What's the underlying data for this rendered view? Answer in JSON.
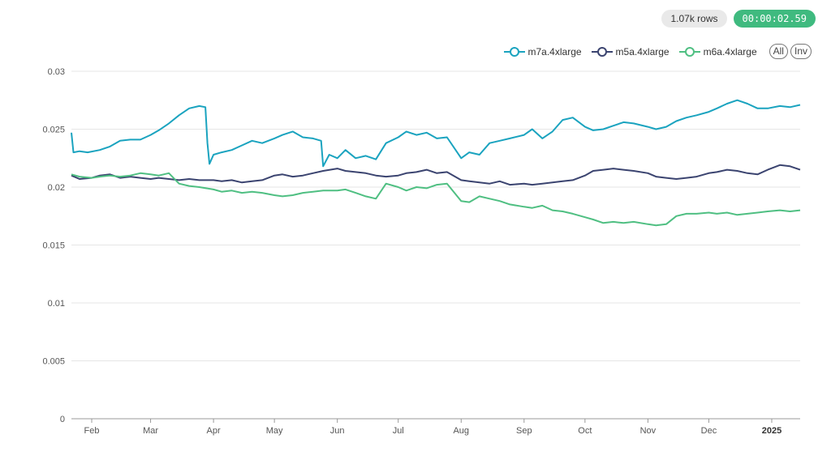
{
  "header": {
    "rows_badge": "1.07k rows",
    "timer": "00:00:02.59"
  },
  "legend": {
    "all_label": "All",
    "inv_label": "Inv"
  },
  "chart_data": {
    "type": "line",
    "title": "",
    "xlabel": "",
    "ylabel": "",
    "xlim": [
      "2024-01-22",
      "2025-01-15"
    ],
    "ylim": [
      0,
      0.03
    ],
    "y_ticks": [
      0,
      0.005,
      0.01,
      0.015,
      0.02,
      0.025,
      0.03
    ],
    "y_tick_labels": [
      "0",
      "0.005",
      "0.01",
      "0.015",
      "0.02",
      "0.025",
      "0.03"
    ],
    "x_ticks": [
      {
        "date": "2024-02-01",
        "label": "Feb",
        "bold": false
      },
      {
        "date": "2024-03-01",
        "label": "Mar",
        "bold": false
      },
      {
        "date": "2024-04-01",
        "label": "Apr",
        "bold": false
      },
      {
        "date": "2024-05-01",
        "label": "May",
        "bold": false
      },
      {
        "date": "2024-06-01",
        "label": "Jun",
        "bold": false
      },
      {
        "date": "2024-07-01",
        "label": "Jul",
        "bold": false
      },
      {
        "date": "2024-08-01",
        "label": "Aug",
        "bold": false
      },
      {
        "date": "2024-09-01",
        "label": "Sep",
        "bold": false
      },
      {
        "date": "2024-10-01",
        "label": "Oct",
        "bold": false
      },
      {
        "date": "2024-11-01",
        "label": "Nov",
        "bold": false
      },
      {
        "date": "2024-12-01",
        "label": "Dec",
        "bold": false
      },
      {
        "date": "2025-01-01",
        "label": "2025",
        "bold": true
      }
    ],
    "grid": true,
    "legend_position": "top-right",
    "series": [
      {
        "name": "m7a.4xlarge",
        "color": "#1aa3bf",
        "points": [
          [
            "2024-01-22",
            0.0247
          ],
          [
            "2024-01-23",
            0.023
          ],
          [
            "2024-01-26",
            0.0231
          ],
          [
            "2024-01-30",
            0.023
          ],
          [
            "2024-02-05",
            0.0232
          ],
          [
            "2024-02-10",
            0.0235
          ],
          [
            "2024-02-15",
            0.024
          ],
          [
            "2024-02-20",
            0.0241
          ],
          [
            "2024-02-25",
            0.0241
          ],
          [
            "2024-03-01",
            0.0245
          ],
          [
            "2024-03-05",
            0.0249
          ],
          [
            "2024-03-10",
            0.0255
          ],
          [
            "2024-03-15",
            0.0262
          ],
          [
            "2024-03-20",
            0.0268
          ],
          [
            "2024-03-25",
            0.027
          ],
          [
            "2024-03-28",
            0.0269
          ],
          [
            "2024-03-29",
            0.0238
          ],
          [
            "2024-03-30",
            0.022
          ],
          [
            "2024-04-01",
            0.0228
          ],
          [
            "2024-04-05",
            0.023
          ],
          [
            "2024-04-10",
            0.0232
          ],
          [
            "2024-04-15",
            0.0236
          ],
          [
            "2024-04-20",
            0.024
          ],
          [
            "2024-04-25",
            0.0238
          ],
          [
            "2024-05-01",
            0.0242
          ],
          [
            "2024-05-05",
            0.0245
          ],
          [
            "2024-05-10",
            0.0248
          ],
          [
            "2024-05-15",
            0.0243
          ],
          [
            "2024-05-20",
            0.0242
          ],
          [
            "2024-05-24",
            0.024
          ],
          [
            "2024-05-25",
            0.0218
          ],
          [
            "2024-05-28",
            0.0228
          ],
          [
            "2024-06-01",
            0.0225
          ],
          [
            "2024-06-05",
            0.0232
          ],
          [
            "2024-06-10",
            0.0225
          ],
          [
            "2024-06-15",
            0.0227
          ],
          [
            "2024-06-20",
            0.0224
          ],
          [
            "2024-06-25",
            0.0238
          ],
          [
            "2024-07-01",
            0.0243
          ],
          [
            "2024-07-05",
            0.0248
          ],
          [
            "2024-07-10",
            0.0245
          ],
          [
            "2024-07-15",
            0.0247
          ],
          [
            "2024-07-20",
            0.0242
          ],
          [
            "2024-07-25",
            0.0243
          ],
          [
            "2024-08-01",
            0.0225
          ],
          [
            "2024-08-05",
            0.023
          ],
          [
            "2024-08-10",
            0.0228
          ],
          [
            "2024-08-15",
            0.0238
          ],
          [
            "2024-08-20",
            0.024
          ],
          [
            "2024-08-25",
            0.0242
          ],
          [
            "2024-09-01",
            0.0245
          ],
          [
            "2024-09-05",
            0.025
          ],
          [
            "2024-09-10",
            0.0242
          ],
          [
            "2024-09-15",
            0.0248
          ],
          [
            "2024-09-20",
            0.0258
          ],
          [
            "2024-09-25",
            0.026
          ],
          [
            "2024-10-01",
            0.0252
          ],
          [
            "2024-10-05",
            0.0249
          ],
          [
            "2024-10-10",
            0.025
          ],
          [
            "2024-10-15",
            0.0253
          ],
          [
            "2024-10-20",
            0.0256
          ],
          [
            "2024-10-25",
            0.0255
          ],
          [
            "2024-11-01",
            0.0252
          ],
          [
            "2024-11-05",
            0.025
          ],
          [
            "2024-11-10",
            0.0252
          ],
          [
            "2024-11-15",
            0.0257
          ],
          [
            "2024-11-20",
            0.026
          ],
          [
            "2024-11-25",
            0.0262
          ],
          [
            "2024-12-01",
            0.0265
          ],
          [
            "2024-12-05",
            0.0268
          ],
          [
            "2024-12-10",
            0.0272
          ],
          [
            "2024-12-15",
            0.0275
          ],
          [
            "2024-12-20",
            0.0272
          ],
          [
            "2024-12-25",
            0.0268
          ],
          [
            "2024-12-30",
            0.0268
          ],
          [
            "2025-01-05",
            0.027
          ],
          [
            "2025-01-10",
            0.0269
          ],
          [
            "2025-01-15",
            0.0271
          ]
        ]
      },
      {
        "name": "m5a.4xlarge",
        "color": "#3b4470",
        "points": [
          [
            "2024-01-22",
            0.021
          ],
          [
            "2024-01-26",
            0.0207
          ],
          [
            "2024-02-01",
            0.0208
          ],
          [
            "2024-02-05",
            0.021
          ],
          [
            "2024-02-10",
            0.0211
          ],
          [
            "2024-02-15",
            0.0208
          ],
          [
            "2024-02-20",
            0.0209
          ],
          [
            "2024-02-25",
            0.0208
          ],
          [
            "2024-03-01",
            0.0207
          ],
          [
            "2024-03-05",
            0.0208
          ],
          [
            "2024-03-10",
            0.0207
          ],
          [
            "2024-03-15",
            0.0206
          ],
          [
            "2024-03-20",
            0.0207
          ],
          [
            "2024-03-25",
            0.0206
          ],
          [
            "2024-04-01",
            0.0206
          ],
          [
            "2024-04-05",
            0.0205
          ],
          [
            "2024-04-10",
            0.0206
          ],
          [
            "2024-04-15",
            0.0204
          ],
          [
            "2024-04-20",
            0.0205
          ],
          [
            "2024-04-25",
            0.0206
          ],
          [
            "2024-05-01",
            0.021
          ],
          [
            "2024-05-05",
            0.0211
          ],
          [
            "2024-05-10",
            0.0209
          ],
          [
            "2024-05-15",
            0.021
          ],
          [
            "2024-05-20",
            0.0212
          ],
          [
            "2024-05-25",
            0.0214
          ],
          [
            "2024-06-01",
            0.0216
          ],
          [
            "2024-06-05",
            0.0214
          ],
          [
            "2024-06-10",
            0.0213
          ],
          [
            "2024-06-15",
            0.0212
          ],
          [
            "2024-06-20",
            0.021
          ],
          [
            "2024-06-25",
            0.0209
          ],
          [
            "2024-07-01",
            0.021
          ],
          [
            "2024-07-05",
            0.0212
          ],
          [
            "2024-07-10",
            0.0213
          ],
          [
            "2024-07-15",
            0.0215
          ],
          [
            "2024-07-20",
            0.0212
          ],
          [
            "2024-07-25",
            0.0213
          ],
          [
            "2024-08-01",
            0.0206
          ],
          [
            "2024-08-05",
            0.0205
          ],
          [
            "2024-08-10",
            0.0204
          ],
          [
            "2024-08-15",
            0.0203
          ],
          [
            "2024-08-20",
            0.0205
          ],
          [
            "2024-08-25",
            0.0202
          ],
          [
            "2024-09-01",
            0.0203
          ],
          [
            "2024-09-05",
            0.0202
          ],
          [
            "2024-09-10",
            0.0203
          ],
          [
            "2024-09-15",
            0.0204
          ],
          [
            "2024-09-20",
            0.0205
          ],
          [
            "2024-09-25",
            0.0206
          ],
          [
            "2024-10-01",
            0.021
          ],
          [
            "2024-10-05",
            0.0214
          ],
          [
            "2024-10-10",
            0.0215
          ],
          [
            "2024-10-15",
            0.0216
          ],
          [
            "2024-10-20",
            0.0215
          ],
          [
            "2024-10-25",
            0.0214
          ],
          [
            "2024-11-01",
            0.0212
          ],
          [
            "2024-11-05",
            0.0209
          ],
          [
            "2024-11-10",
            0.0208
          ],
          [
            "2024-11-15",
            0.0207
          ],
          [
            "2024-11-20",
            0.0208
          ],
          [
            "2024-11-25",
            0.0209
          ],
          [
            "2024-12-01",
            0.0212
          ],
          [
            "2024-12-05",
            0.0213
          ],
          [
            "2024-12-10",
            0.0215
          ],
          [
            "2024-12-15",
            0.0214
          ],
          [
            "2024-12-20",
            0.0212
          ],
          [
            "2024-12-25",
            0.0211
          ],
          [
            "2024-12-30",
            0.0215
          ],
          [
            "2025-01-05",
            0.0219
          ],
          [
            "2025-01-10",
            0.0218
          ],
          [
            "2025-01-15",
            0.0215
          ]
        ]
      },
      {
        "name": "m6a.4xlarge",
        "color": "#4fbf82",
        "points": [
          [
            "2024-01-22",
            0.0211
          ],
          [
            "2024-01-26",
            0.0209
          ],
          [
            "2024-02-01",
            0.0208
          ],
          [
            "2024-02-05",
            0.0209
          ],
          [
            "2024-02-10",
            0.021
          ],
          [
            "2024-02-15",
            0.0209
          ],
          [
            "2024-02-20",
            0.021
          ],
          [
            "2024-02-25",
            0.0212
          ],
          [
            "2024-03-01",
            0.0211
          ],
          [
            "2024-03-05",
            0.021
          ],
          [
            "2024-03-10",
            0.0212
          ],
          [
            "2024-03-15",
            0.0203
          ],
          [
            "2024-03-20",
            0.0201
          ],
          [
            "2024-03-25",
            0.02
          ],
          [
            "2024-04-01",
            0.0198
          ],
          [
            "2024-04-05",
            0.0196
          ],
          [
            "2024-04-10",
            0.0197
          ],
          [
            "2024-04-15",
            0.0195
          ],
          [
            "2024-04-20",
            0.0196
          ],
          [
            "2024-04-25",
            0.0195
          ],
          [
            "2024-05-01",
            0.0193
          ],
          [
            "2024-05-05",
            0.0192
          ],
          [
            "2024-05-10",
            0.0193
          ],
          [
            "2024-05-15",
            0.0195
          ],
          [
            "2024-05-20",
            0.0196
          ],
          [
            "2024-05-25",
            0.0197
          ],
          [
            "2024-06-01",
            0.0197
          ],
          [
            "2024-06-05",
            0.0198
          ],
          [
            "2024-06-10",
            0.0195
          ],
          [
            "2024-06-15",
            0.0192
          ],
          [
            "2024-06-20",
            0.019
          ],
          [
            "2024-06-25",
            0.0203
          ],
          [
            "2024-07-01",
            0.02
          ],
          [
            "2024-07-05",
            0.0197
          ],
          [
            "2024-07-10",
            0.02
          ],
          [
            "2024-07-15",
            0.0199
          ],
          [
            "2024-07-20",
            0.0202
          ],
          [
            "2024-07-25",
            0.0203
          ],
          [
            "2024-08-01",
            0.0188
          ],
          [
            "2024-08-05",
            0.0187
          ],
          [
            "2024-08-10",
            0.0192
          ],
          [
            "2024-08-15",
            0.019
          ],
          [
            "2024-08-20",
            0.0188
          ],
          [
            "2024-08-25",
            0.0185
          ],
          [
            "2024-09-01",
            0.0183
          ],
          [
            "2024-09-05",
            0.0182
          ],
          [
            "2024-09-10",
            0.0184
          ],
          [
            "2024-09-15",
            0.018
          ],
          [
            "2024-09-20",
            0.0179
          ],
          [
            "2024-09-25",
            0.0177
          ],
          [
            "2024-10-01",
            0.0174
          ],
          [
            "2024-10-05",
            0.0172
          ],
          [
            "2024-10-10",
            0.0169
          ],
          [
            "2024-10-15",
            0.017
          ],
          [
            "2024-10-20",
            0.0169
          ],
          [
            "2024-10-25",
            0.017
          ],
          [
            "2024-11-01",
            0.0168
          ],
          [
            "2024-11-05",
            0.0167
          ],
          [
            "2024-11-10",
            0.0168
          ],
          [
            "2024-11-15",
            0.0175
          ],
          [
            "2024-11-20",
            0.0177
          ],
          [
            "2024-11-25",
            0.0177
          ],
          [
            "2024-12-01",
            0.0178
          ],
          [
            "2024-12-05",
            0.0177
          ],
          [
            "2024-12-10",
            0.0178
          ],
          [
            "2024-12-15",
            0.0176
          ],
          [
            "2024-12-20",
            0.0177
          ],
          [
            "2024-12-25",
            0.0178
          ],
          [
            "2024-12-30",
            0.0179
          ],
          [
            "2025-01-05",
            0.018
          ],
          [
            "2025-01-10",
            0.0179
          ],
          [
            "2025-01-15",
            0.018
          ]
        ]
      }
    ]
  }
}
